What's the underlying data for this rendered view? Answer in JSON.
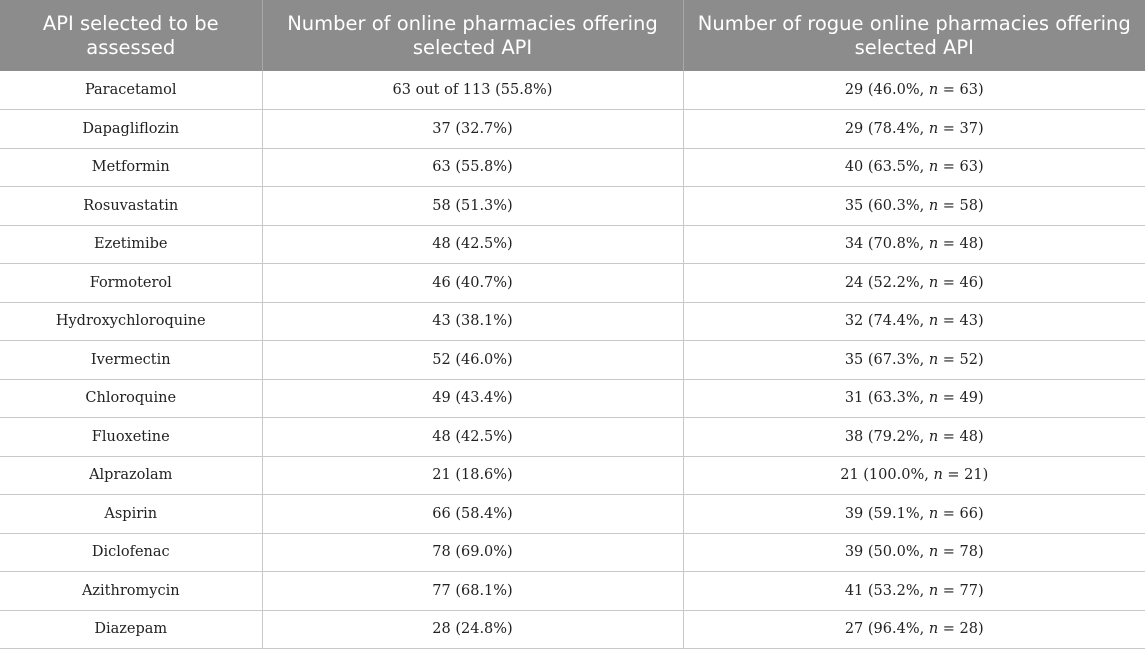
{
  "table": {
    "headers": [
      "API selected to be assessed",
      "Number of online pharmacies offering selected API",
      "Number of rogue online pharmacies offering selected API"
    ],
    "rows": [
      {
        "api": "Paracetamol",
        "online": "63 out of 113 (55.8%)",
        "rogue_pre": "29 (46.0%, ",
        "n": "n",
        "rogue_post": " = 63)"
      },
      {
        "api": "Dapagliflozin",
        "online": "37 (32.7%)",
        "rogue_pre": "29 (78.4%, ",
        "n": "n",
        "rogue_post": " = 37)"
      },
      {
        "api": "Metformin",
        "online": "63 (55.8%)",
        "rogue_pre": "40 (63.5%, ",
        "n": "n",
        "rogue_post": " = 63)"
      },
      {
        "api": "Rosuvastatin",
        "online": "58 (51.3%)",
        "rogue_pre": "35 (60.3%, ",
        "n": "n",
        "rogue_post": " = 58)"
      },
      {
        "api": "Ezetimibe",
        "online": "48 (42.5%)",
        "rogue_pre": "34 (70.8%, ",
        "n": "n",
        "rogue_post": " = 48)"
      },
      {
        "api": "Formoterol",
        "online": "46 (40.7%)",
        "rogue_pre": "24 (52.2%, ",
        "n": "n",
        "rogue_post": " = 46)"
      },
      {
        "api": "Hydroxychloroquine",
        "online": "43 (38.1%)",
        "rogue_pre": "32 (74.4%, ",
        "n": "n",
        "rogue_post": " = 43)"
      },
      {
        "api": "Ivermectin",
        "online": "52 (46.0%)",
        "rogue_pre": "35 (67.3%, ",
        "n": "n",
        "rogue_post": " = 52)"
      },
      {
        "api": "Chloroquine",
        "online": "49 (43.4%)",
        "rogue_pre": "31 (63.3%, ",
        "n": "n",
        "rogue_post": " = 49)"
      },
      {
        "api": "Fluoxetine",
        "online": "48 (42.5%)",
        "rogue_pre": "38 (79.2%, ",
        "n": "n",
        "rogue_post": " = 48)"
      },
      {
        "api": "Alprazolam",
        "online": "21 (18.6%)",
        "rogue_pre": "21 (100.0%, ",
        "n": "n",
        "rogue_post": " = 21)"
      },
      {
        "api": "Aspirin",
        "online": "66 (58.4%)",
        "rogue_pre": "39 (59.1%, ",
        "n": "n",
        "rogue_post": " = 66)"
      },
      {
        "api": "Diclofenac",
        "online": "78 (69.0%)",
        "rogue_pre": "39 (50.0%, ",
        "n": "n",
        "rogue_post": " = 78)"
      },
      {
        "api": "Azithromycin",
        "online": "77 (68.1%)",
        "rogue_pre": "41 (53.2%, ",
        "n": "n",
        "rogue_post": " = 77)"
      },
      {
        "api": "Diazepam",
        "online": "28 (24.8%)",
        "rogue_pre": "27 (96.4%, ",
        "n": "n",
        "rogue_post": " = 28)"
      }
    ]
  }
}
